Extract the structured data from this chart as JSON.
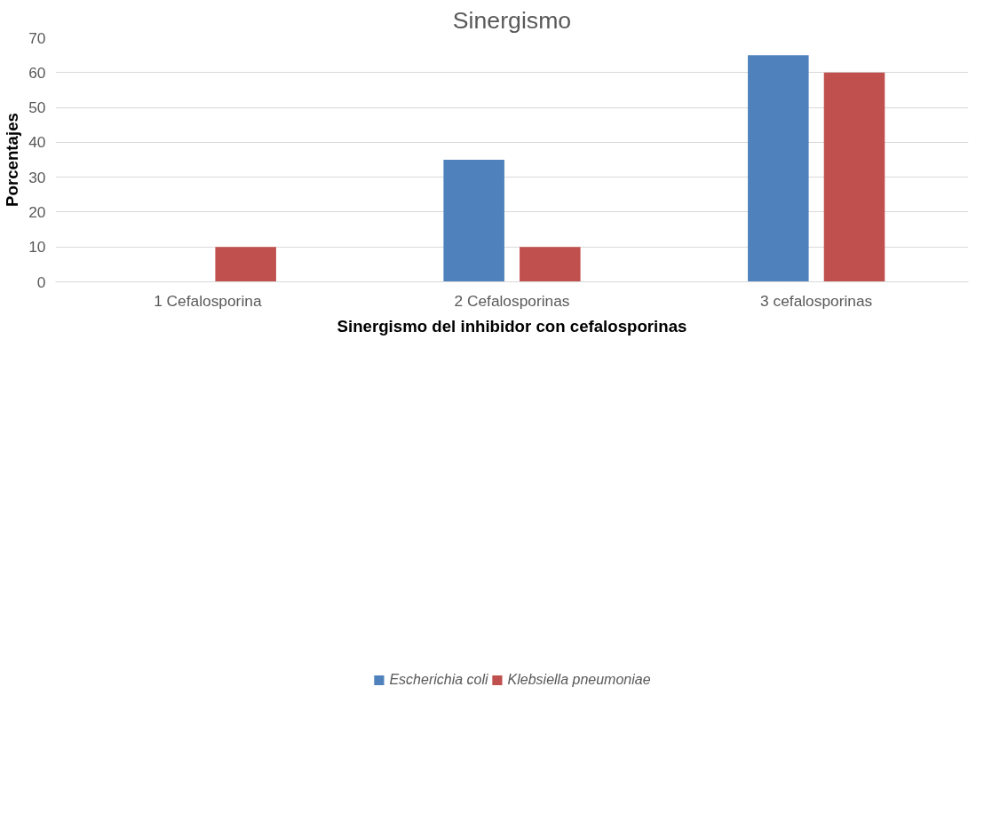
{
  "chart_data": {
    "type": "bar",
    "title": "Sinergismo",
    "xlabel": "Sinergismo del inhibidor con cefalosporinas",
    "ylabel": "Porcentajes",
    "categories": [
      "1 Cefalosporina",
      "2 Cefalosporinas",
      "3 cefalosporinas"
    ],
    "series": [
      {
        "name": "Escherichia coli",
        "color": "#4f81bd",
        "values": [
          0,
          35,
          65
        ]
      },
      {
        "name": "Klebsiella pneumoniae",
        "color": "#c0504d",
        "values": [
          10,
          10,
          60
        ]
      }
    ],
    "ylim": [
      0,
      70
    ],
    "yticks": [
      0,
      10,
      20,
      30,
      40,
      50,
      60,
      70
    ],
    "grid": "y",
    "legend": "bottom"
  }
}
